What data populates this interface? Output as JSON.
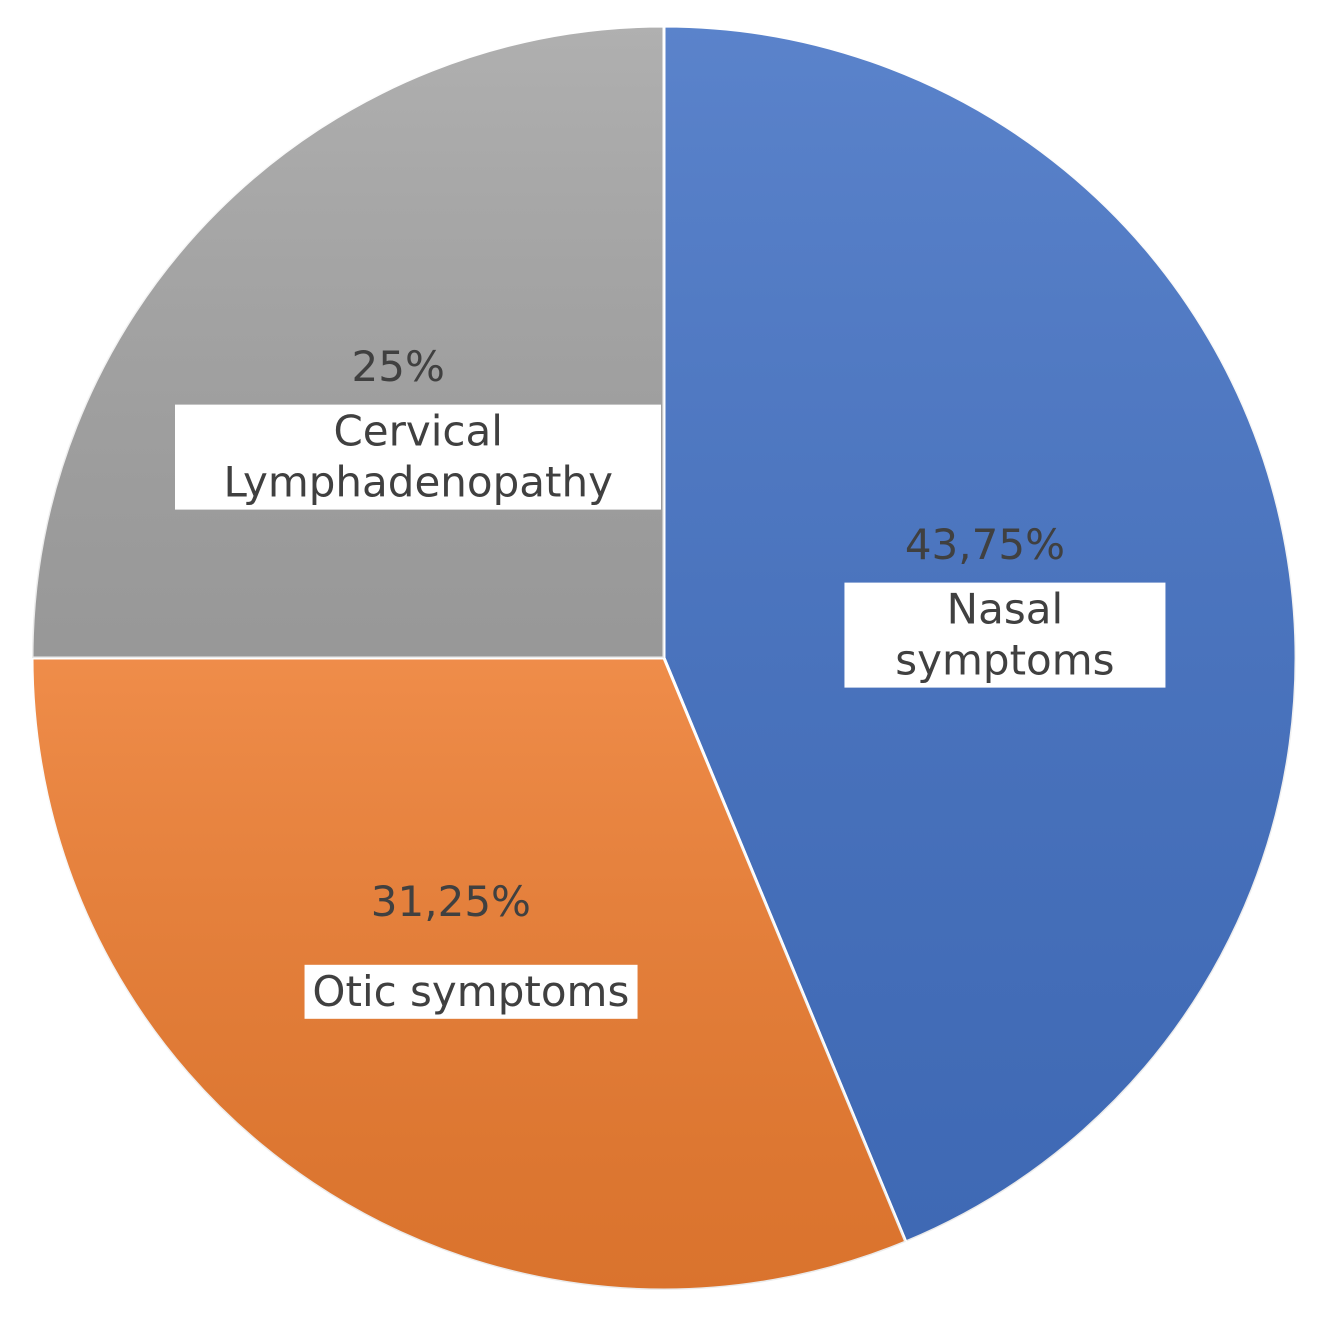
{
  "chart_data": {
    "type": "pie",
    "categories": [
      "Nasal symptoms",
      "Otic symptoms",
      "Cervical Lymphadenopathy"
    ],
    "values": [
      43.75,
      31.25,
      25
    ],
    "value_labels": [
      "43,75%",
      "31,25%",
      "25%"
    ],
    "colors": [
      "#4472c4",
      "#ed7d31",
      "#a5a5a5"
    ]
  }
}
